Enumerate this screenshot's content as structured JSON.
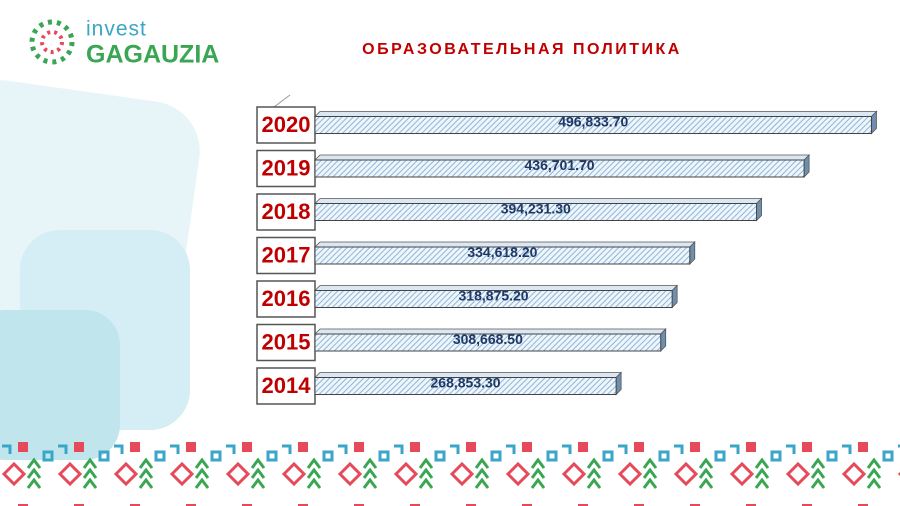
{
  "logo": {
    "line1": "invest",
    "line2": "GAGAUZIA"
  },
  "chart_data": {
    "type": "hbar",
    "title": "ОБРАЗОВАТЕЛЬНАЯ ПОЛИТИКА",
    "categories": [
      "2020",
      "2019",
      "2018",
      "2017",
      "2016",
      "2015",
      "2014"
    ],
    "values": [
      496833.7,
      436701.7,
      394231.3,
      334618.2,
      318875.2,
      308668.5,
      268853.3
    ],
    "value_labels": [
      "496,833.70",
      "436,701.70",
      "394,231.30",
      "334,618.20",
      "318,875.20",
      "308,668.50",
      "268,853.30"
    ],
    "color": "#8fb6d9",
    "xlim": [
      0,
      500000
    ]
  }
}
